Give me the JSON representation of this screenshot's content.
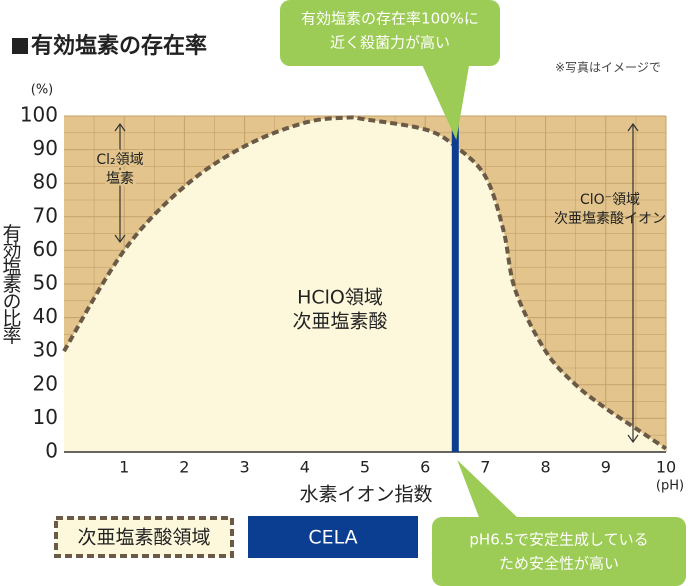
{
  "chart_data": {
    "type": "area",
    "title": "有効塩素の存在率",
    "note": "※写真はイメージで",
    "y_unit": "(%)",
    "x_unit": "(pH)",
    "ylabel": "有効塩素の比率",
    "xlabel": "水素イオン指数",
    "x": [
      0,
      1,
      2,
      3,
      4,
      4.7,
      5,
      6,
      6.5,
      7,
      7.3,
      7.5,
      8,
      8.5,
      9,
      9.5,
      10
    ],
    "series": [
      {
        "name": "次亜塩素酸領域",
        "color": "#fdf8dc",
        "line_color": "#6b5a45",
        "values": [
          30,
          60,
          79,
          91,
          98,
          99.5,
          99,
          96,
          91,
          82,
          66,
          48,
          30,
          20,
          13,
          7,
          1
        ]
      }
    ],
    "highlight": {
      "name": "CELA",
      "x": 6.5,
      "color": "#0b3d91"
    },
    "background": "#e2c48c",
    "xlim": [
      0,
      10
    ],
    "xticks": [
      1,
      2,
      3,
      4,
      5,
      6,
      7,
      8,
      9,
      10
    ],
    "ylim": [
      0,
      100
    ],
    "yticks": [
      0,
      10,
      20,
      30,
      40,
      50,
      60,
      70,
      80,
      90,
      100
    ],
    "grid": true,
    "annotations": [
      {
        "lines": [
          "Cl₂領域",
          "塩素"
        ]
      },
      {
        "lines": [
          "HClO領域",
          "次亜塩素酸"
        ]
      },
      {
        "lines": [
          "ClO⁻領域",
          "次亜塩素酸イオン"
        ]
      }
    ],
    "callouts": [
      {
        "lines": [
          "有効塩素の存在率100%に",
          "近く殺菌力が高い"
        ]
      },
      {
        "lines": [
          "pH6.5で安定生成している",
          "ため安全性が高い"
        ]
      }
    ]
  }
}
